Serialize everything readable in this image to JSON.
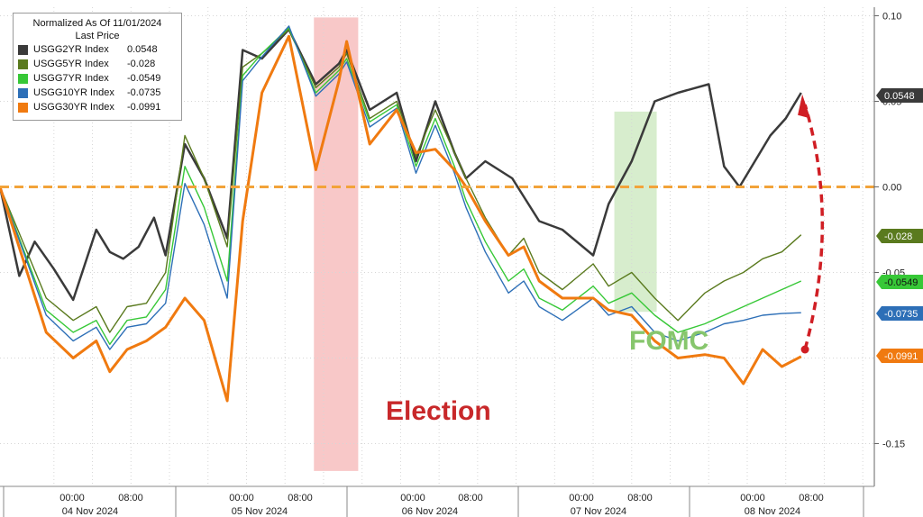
{
  "legend": {
    "title_line1": "Normalized As Of 11/01/2024",
    "title_line2": "Last Price",
    "items": [
      {
        "name": "USGG2YR Index",
        "value": "0.0548",
        "color": "#3a3a3a"
      },
      {
        "name": "USGG5YR Index",
        "value": "-0.028",
        "color": "#5a7a1e"
      },
      {
        "name": "USGG7YR Index",
        "value": "-0.0549",
        "color": "#37c837"
      },
      {
        "name": "USGG10YR Index",
        "value": "-0.0735",
        "color": "#2d6fb7"
      },
      {
        "name": "USGG30YR Index",
        "value": "-0.0991",
        "color": "#f07a10"
      }
    ]
  },
  "annotations": {
    "election": "Election",
    "fomc": "FOMC"
  },
  "chart_data": {
    "type": "line",
    "title": "",
    "xlabel": "",
    "ylabel": "",
    "ylim": [
      -0.175,
      0.105
    ],
    "y_ticks": [
      "0.10",
      "0.05",
      "0.00",
      "-0.05",
      "-0.15"
    ],
    "x_tick_times": [
      "00:00",
      "08:00",
      "00:00",
      "08:00",
      "00:00",
      "08:00",
      "00:00",
      "08:00",
      "00:00",
      "08:00"
    ],
    "x_date_labels": [
      "04 Nov 2024",
      "05 Nov 2024",
      "06 Nov 2024",
      "07 Nov 2024",
      "08 Nov 2024"
    ],
    "reference_line": 0.0,
    "shaded_regions": [
      {
        "label": "Election",
        "color": "#f5b5b5"
      },
      {
        "label": "FOMC",
        "color": "#cde8c0"
      }
    ],
    "series": [
      {
        "name": "USGG2YR Index",
        "last": "0.0548",
        "color": "#3a3a3a",
        "x": [
          0,
          0.5,
          0.9,
          1.4,
          1.9,
          2.5,
          2.85,
          3.2,
          3.6,
          4.0,
          4.3,
          4.8,
          5.3,
          5.9,
          6.3,
          6.8,
          7.5,
          8.2,
          8.8,
          9.0,
          9.6,
          10.3,
          10.8,
          11.3,
          11.8,
          12.1,
          12.6,
          13.3,
          14.0,
          14.6,
          15.4,
          15.8,
          16.4,
          17.0,
          17.6,
          18.4,
          18.8,
          19.2,
          19.6,
          20.0,
          20.4,
          20.8
        ],
        "y": [
          0.0,
          -0.052,
          -0.032,
          -0.048,
          -0.066,
          -0.025,
          -0.038,
          -0.042,
          -0.035,
          -0.018,
          -0.04,
          0.025,
          0.005,
          -0.03,
          0.08,
          0.075,
          0.092,
          0.06,
          0.072,
          0.08,
          0.045,
          0.055,
          0.015,
          0.05,
          0.02,
          0.005,
          0.015,
          0.005,
          -0.02,
          -0.025,
          -0.04,
          -0.01,
          0.015,
          0.05,
          0.055,
          0.06,
          0.012,
          0.0,
          0.015,
          0.03,
          0.04,
          0.055
        ]
      },
      {
        "name": "USGG5YR Index",
        "last": "-0.028",
        "color": "#5a7a1e",
        "x": [
          0,
          1.2,
          1.9,
          2.5,
          2.85,
          3.3,
          3.8,
          4.3,
          4.8,
          5.3,
          5.9,
          6.3,
          6.8,
          7.5,
          8.2,
          8.8,
          9.0,
          9.6,
          10.3,
          10.8,
          11.3,
          11.8,
          12.1,
          12.6,
          13.2,
          13.6,
          14.0,
          14.6,
          15.4,
          15.8,
          16.4,
          17.0,
          17.6,
          18.3,
          18.8,
          19.3,
          19.8,
          20.3,
          20.8
        ],
        "y": [
          0.0,
          -0.065,
          -0.078,
          -0.07,
          -0.085,
          -0.07,
          -0.068,
          -0.05,
          0.03,
          0.005,
          -0.035,
          0.07,
          0.078,
          0.092,
          0.058,
          0.07,
          0.078,
          0.04,
          0.05,
          0.018,
          0.045,
          0.02,
          0.005,
          -0.018,
          -0.04,
          -0.03,
          -0.05,
          -0.06,
          -0.045,
          -0.058,
          -0.05,
          -0.065,
          -0.078,
          -0.062,
          -0.055,
          -0.05,
          -0.042,
          -0.038,
          -0.028
        ]
      },
      {
        "name": "USGG7YR Index",
        "last": "-0.0549",
        "color": "#37c837",
        "x": [
          0,
          1.2,
          1.9,
          2.5,
          2.85,
          3.3,
          3.8,
          4.3,
          4.8,
          5.3,
          5.9,
          6.3,
          6.8,
          7.5,
          8.2,
          8.8,
          9.0,
          9.6,
          10.3,
          10.8,
          11.3,
          11.8,
          12.1,
          12.6,
          13.2,
          13.6,
          14.0,
          14.6,
          15.4,
          15.8,
          16.4,
          17.0,
          17.6,
          18.3,
          18.8,
          19.3,
          19.8,
          20.3,
          20.8
        ],
        "y": [
          0.0,
          -0.072,
          -0.085,
          -0.078,
          -0.092,
          -0.078,
          -0.076,
          -0.06,
          0.012,
          -0.012,
          -0.055,
          0.065,
          0.078,
          0.093,
          0.055,
          0.068,
          0.075,
          0.038,
          0.048,
          0.012,
          0.04,
          0.012,
          -0.008,
          -0.032,
          -0.055,
          -0.048,
          -0.065,
          -0.072,
          -0.058,
          -0.068,
          -0.062,
          -0.075,
          -0.085,
          -0.08,
          -0.075,
          -0.07,
          -0.065,
          -0.06,
          -0.055
        ]
      },
      {
        "name": "USGG10YR Index",
        "last": "-0.0735",
        "color": "#2d6fb7",
        "x": [
          0,
          1.2,
          1.9,
          2.5,
          2.85,
          3.3,
          3.8,
          4.3,
          4.8,
          5.3,
          5.9,
          6.3,
          6.8,
          7.5,
          8.2,
          8.8,
          9.0,
          9.6,
          10.3,
          10.8,
          11.3,
          11.8,
          12.1,
          12.6,
          13.2,
          13.6,
          14.0,
          14.6,
          15.4,
          15.8,
          16.4,
          17.0,
          17.6,
          18.3,
          18.8,
          19.3,
          19.8,
          20.3,
          20.8
        ],
        "y": [
          0.0,
          -0.075,
          -0.09,
          -0.082,
          -0.095,
          -0.082,
          -0.08,
          -0.068,
          0.002,
          -0.022,
          -0.065,
          0.062,
          0.076,
          0.094,
          0.053,
          0.066,
          0.073,
          0.035,
          0.046,
          0.008,
          0.036,
          0.008,
          -0.012,
          -0.038,
          -0.062,
          -0.055,
          -0.07,
          -0.078,
          -0.065,
          -0.075,
          -0.07,
          -0.085,
          -0.09,
          -0.085,
          -0.08,
          -0.078,
          -0.075,
          -0.074,
          -0.0735
        ]
      },
      {
        "name": "USGG30YR Index",
        "last": "-0.0991",
        "color": "#f07a10",
        "x": [
          0,
          1.2,
          1.9,
          2.5,
          2.85,
          3.3,
          3.8,
          4.3,
          4.8,
          5.3,
          5.9,
          6.3,
          6.8,
          7.5,
          8.2,
          8.8,
          9.0,
          9.6,
          10.3,
          10.8,
          11.3,
          11.8,
          12.1,
          12.6,
          13.2,
          13.6,
          14.0,
          14.6,
          15.4,
          15.8,
          16.4,
          17.0,
          17.6,
          18.3,
          18.8,
          19.3,
          19.8,
          20.3,
          20.8
        ],
        "y": [
          0.0,
          -0.085,
          -0.1,
          -0.09,
          -0.108,
          -0.095,
          -0.09,
          -0.082,
          -0.065,
          -0.078,
          -0.125,
          -0.02,
          0.055,
          0.088,
          0.01,
          0.062,
          0.085,
          0.025,
          0.045,
          0.02,
          0.022,
          0.01,
          0.0,
          -0.02,
          -0.04,
          -0.035,
          -0.055,
          -0.065,
          -0.065,
          -0.072,
          -0.075,
          -0.09,
          -0.1,
          -0.098,
          -0.1,
          -0.115,
          -0.095,
          -0.105,
          -0.0991
        ]
      }
    ]
  }
}
